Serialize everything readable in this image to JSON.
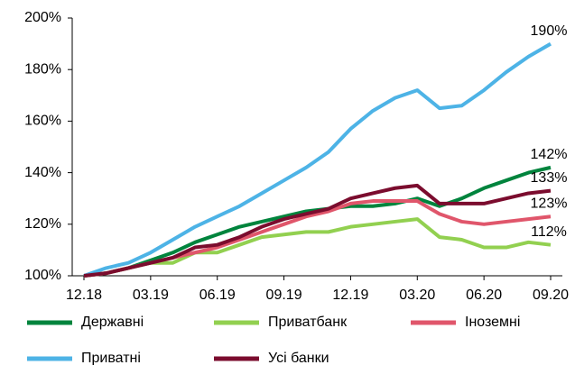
{
  "chart_data": {
    "type": "line",
    "categories": [
      "12.18",
      null,
      null,
      "03.19",
      null,
      null,
      "06.19",
      null,
      null,
      "09.19",
      null,
      null,
      "12.19",
      null,
      null,
      "03.20",
      null,
      null,
      "06.20",
      null,
      null,
      "09.20"
    ],
    "ylim": [
      100,
      200
    ],
    "yticks": [
      {
        "value": 100,
        "label": "100%"
      },
      {
        "value": 120,
        "label": "120%"
      },
      {
        "value": 140,
        "label": "140%"
      },
      {
        "value": 160,
        "label": "160%"
      },
      {
        "value": 180,
        "label": "180%"
      },
      {
        "value": 200,
        "label": "200%"
      }
    ],
    "legend": "bottom",
    "series": [
      {
        "name": "Державні",
        "color": "#00843d",
        "values": [
          100,
          101,
          103,
          106,
          109,
          113,
          116,
          119,
          121,
          123,
          125,
          126,
          127,
          127,
          128,
          130,
          127,
          130,
          134,
          137,
          140,
          142
        ],
        "value_labels": [
          null,
          null,
          null,
          null,
          null,
          null,
          null,
          null,
          null,
          null,
          null,
          null,
          null,
          null,
          null,
          null,
          null,
          null,
          null,
          null,
          null,
          "142%"
        ]
      },
      {
        "name": "Приватбанк",
        "color": "#92d050",
        "values": [
          100,
          101,
          103,
          105,
          105,
          109,
          109,
          112,
          115,
          116,
          117,
          117,
          119,
          120,
          121,
          122,
          115,
          114,
          111,
          111,
          113,
          112
        ],
        "value_labels": [
          null,
          null,
          null,
          null,
          null,
          null,
          null,
          null,
          null,
          null,
          null,
          null,
          null,
          null,
          null,
          null,
          null,
          null,
          null,
          null,
          null,
          "112%"
        ]
      },
      {
        "name": "Іноземні",
        "color": "#e0566b",
        "values": [
          100,
          101,
          103,
          105,
          107,
          109,
          111,
          114,
          117,
          120,
          123,
          125,
          128,
          129,
          129,
          129,
          124,
          121,
          120,
          121,
          122,
          123
        ],
        "value_labels": [
          null,
          null,
          null,
          null,
          null,
          null,
          null,
          null,
          null,
          null,
          null,
          null,
          null,
          null,
          null,
          null,
          null,
          null,
          null,
          null,
          null,
          "123%"
        ]
      },
      {
        "name": "Приватні",
        "color": "#4db3e6",
        "values": [
          100,
          103,
          105,
          109,
          114,
          119,
          123,
          127,
          132,
          137,
          142,
          148,
          157,
          164,
          169,
          172,
          165,
          166,
          172,
          179,
          185,
          190
        ],
        "value_labels": [
          null,
          null,
          null,
          null,
          null,
          null,
          null,
          null,
          null,
          null,
          null,
          null,
          null,
          null,
          null,
          null,
          null,
          null,
          null,
          null,
          null,
          "190%"
        ]
      },
      {
        "name": "Усі банки",
        "color": "#7b0c2e",
        "values": [
          100,
          101,
          103,
          105,
          107,
          111,
          112,
          115,
          119,
          122,
          124,
          126,
          130,
          132,
          134,
          135,
          128,
          128,
          128,
          130,
          132,
          133
        ],
        "value_labels": [
          null,
          null,
          null,
          null,
          null,
          null,
          null,
          null,
          null,
          null,
          null,
          null,
          null,
          null,
          null,
          null,
          null,
          null,
          null,
          null,
          null,
          "133%"
        ]
      }
    ]
  }
}
